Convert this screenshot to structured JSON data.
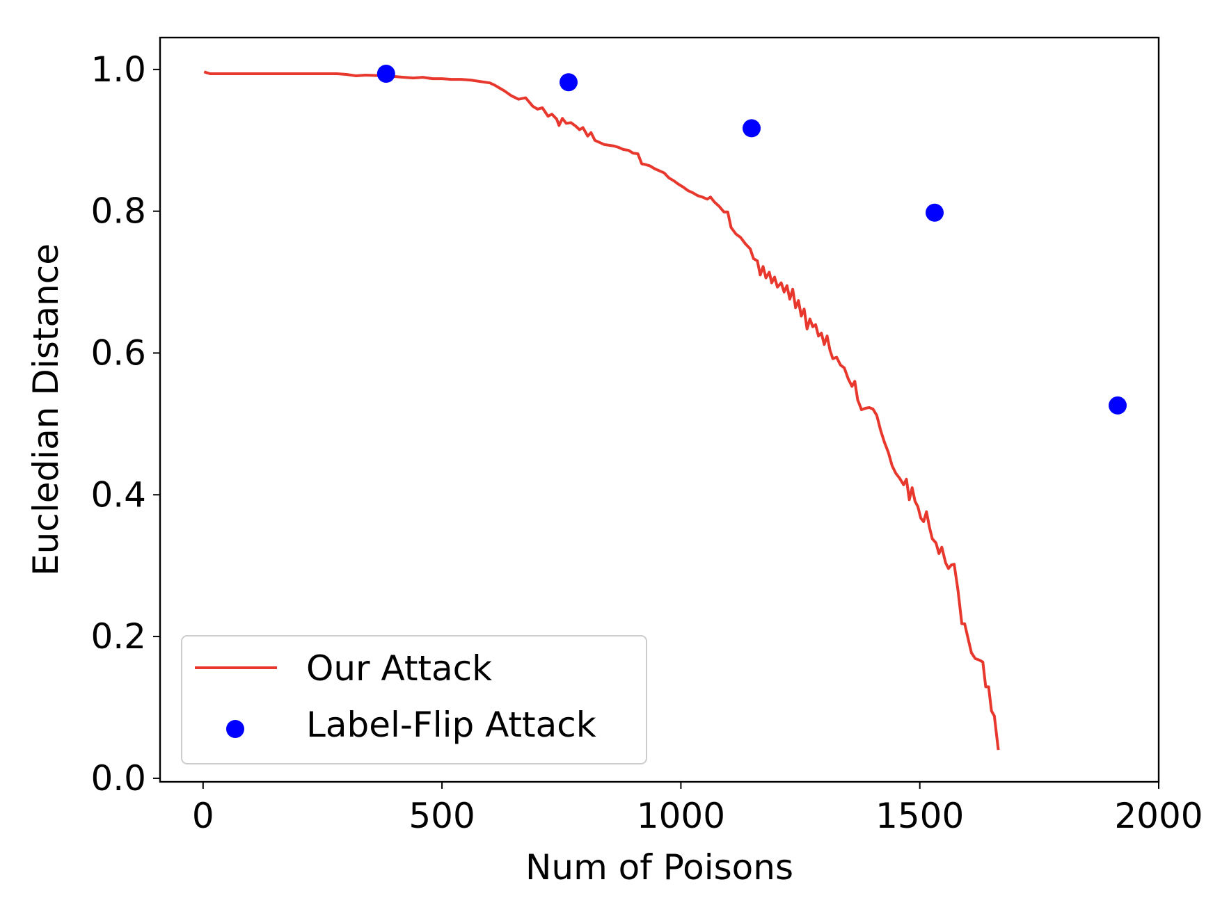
{
  "chart_data": {
    "type": "line",
    "title": "",
    "xlabel": "Num of Poisons",
    "ylabel": "Eucledian Distance",
    "xlim": [
      -90,
      2000
    ],
    "ylim": [
      -0.005,
      1.045
    ],
    "xticks": [
      0,
      500,
      1000,
      1500,
      2000
    ],
    "xtick_labels": [
      "0",
      "500",
      "1000",
      "1500",
      "2000"
    ],
    "yticks": [
      0.0,
      0.2,
      0.4,
      0.6,
      0.8,
      1.0
    ],
    "ytick_labels": [
      "0.0",
      "0.2",
      "0.4",
      "0.6",
      "0.8",
      "1.0"
    ],
    "grid": false,
    "legend_position": "lower-left",
    "series": [
      {
        "name": "Our Attack",
        "kind": "line",
        "color": "#e8372c",
        "points": [
          [
            5,
            0.996
          ],
          [
            15,
            0.994
          ],
          [
            50,
            0.994
          ],
          [
            100,
            0.994
          ],
          [
            200,
            0.994
          ],
          [
            280,
            0.994
          ],
          [
            300,
            0.993
          ],
          [
            320,
            0.991
          ],
          [
            340,
            0.992
          ],
          [
            380,
            0.991
          ],
          [
            400,
            0.99
          ],
          [
            420,
            0.989
          ],
          [
            440,
            0.988
          ],
          [
            460,
            0.989
          ],
          [
            480,
            0.987
          ],
          [
            500,
            0.987
          ],
          [
            520,
            0.986
          ],
          [
            540,
            0.986
          ],
          [
            560,
            0.985
          ],
          [
            580,
            0.983
          ],
          [
            600,
            0.981
          ],
          [
            610,
            0.978
          ],
          [
            620,
            0.974
          ],
          [
            630,
            0.97
          ],
          [
            645,
            0.963
          ],
          [
            660,
            0.958
          ],
          [
            675,
            0.96
          ],
          [
            690,
            0.948
          ],
          [
            700,
            0.944
          ],
          [
            710,
            0.946
          ],
          [
            722,
            0.934
          ],
          [
            730,
            0.937
          ],
          [
            740,
            0.93
          ],
          [
            745,
            0.921
          ],
          [
            752,
            0.931
          ],
          [
            760,
            0.924
          ],
          [
            770,
            0.925
          ],
          [
            780,
            0.92
          ],
          [
            788,
            0.915
          ],
          [
            795,
            0.918
          ],
          [
            805,
            0.906
          ],
          [
            812,
            0.911
          ],
          [
            820,
            0.9
          ],
          [
            830,
            0.897
          ],
          [
            840,
            0.894
          ],
          [
            850,
            0.893
          ],
          [
            860,
            0.892
          ],
          [
            870,
            0.89
          ],
          [
            880,
            0.887
          ],
          [
            890,
            0.886
          ],
          [
            900,
            0.882
          ],
          [
            910,
            0.881
          ],
          [
            918,
            0.867
          ],
          [
            925,
            0.866
          ],
          [
            935,
            0.864
          ],
          [
            945,
            0.86
          ],
          [
            955,
            0.857
          ],
          [
            965,
            0.854
          ],
          [
            975,
            0.847
          ],
          [
            985,
            0.843
          ],
          [
            995,
            0.838
          ],
          [
            1005,
            0.834
          ],
          [
            1015,
            0.829
          ],
          [
            1025,
            0.826
          ],
          [
            1035,
            0.822
          ],
          [
            1045,
            0.82
          ],
          [
            1055,
            0.817
          ],
          [
            1062,
            0.82
          ],
          [
            1070,
            0.813
          ],
          [
            1080,
            0.807
          ],
          [
            1090,
            0.799
          ],
          [
            1098,
            0.799
          ],
          [
            1105,
            0.777
          ],
          [
            1115,
            0.768
          ],
          [
            1125,
            0.763
          ],
          [
            1135,
            0.754
          ],
          [
            1145,
            0.747
          ],
          [
            1152,
            0.733
          ],
          [
            1160,
            0.73
          ],
          [
            1166,
            0.71
          ],
          [
            1172,
            0.722
          ],
          [
            1178,
            0.706
          ],
          [
            1185,
            0.714
          ],
          [
            1190,
            0.699
          ],
          [
            1196,
            0.707
          ],
          [
            1202,
            0.693
          ],
          [
            1210,
            0.699
          ],
          [
            1216,
            0.686
          ],
          [
            1222,
            0.695
          ],
          [
            1228,
            0.676
          ],
          [
            1234,
            0.69
          ],
          [
            1240,
            0.664
          ],
          [
            1246,
            0.674
          ],
          [
            1252,
            0.652
          ],
          [
            1258,
            0.662
          ],
          [
            1264,
            0.634
          ],
          [
            1270,
            0.648
          ],
          [
            1276,
            0.637
          ],
          [
            1282,
            0.64
          ],
          [
            1288,
            0.624
          ],
          [
            1294,
            0.628
          ],
          [
            1300,
            0.612
          ],
          [
            1306,
            0.624
          ],
          [
            1312,
            0.604
          ],
          [
            1318,
            0.592
          ],
          [
            1326,
            0.594
          ],
          [
            1334,
            0.583
          ],
          [
            1342,
            0.579
          ],
          [
            1350,
            0.564
          ],
          [
            1358,
            0.553
          ],
          [
            1364,
            0.56
          ],
          [
            1370,
            0.534
          ],
          [
            1378,
            0.52
          ],
          [
            1386,
            0.522
          ],
          [
            1394,
            0.523
          ],
          [
            1402,
            0.521
          ],
          [
            1410,
            0.512
          ],
          [
            1418,
            0.491
          ],
          [
            1426,
            0.474
          ],
          [
            1434,
            0.46
          ],
          [
            1442,
            0.441
          ],
          [
            1450,
            0.43
          ],
          [
            1458,
            0.423
          ],
          [
            1466,
            0.414
          ],
          [
            1472,
            0.422
          ],
          [
            1478,
            0.393
          ],
          [
            1484,
            0.41
          ],
          [
            1490,
            0.391
          ],
          [
            1496,
            0.383
          ],
          [
            1502,
            0.367
          ],
          [
            1508,
            0.362
          ],
          [
            1514,
            0.376
          ],
          [
            1520,
            0.355
          ],
          [
            1526,
            0.338
          ],
          [
            1534,
            0.332
          ],
          [
            1540,
            0.317
          ],
          [
            1546,
            0.326
          ],
          [
            1554,
            0.304
          ],
          [
            1560,
            0.296
          ],
          [
            1566,
            0.301
          ],
          [
            1572,
            0.302
          ],
          [
            1580,
            0.265
          ],
          [
            1588,
            0.218
          ],
          [
            1594,
            0.218
          ],
          [
            1600,
            0.2
          ],
          [
            1608,
            0.177
          ],
          [
            1616,
            0.169
          ],
          [
            1624,
            0.167
          ],
          [
            1632,
            0.164
          ],
          [
            1638,
            0.129
          ],
          [
            1644,
            0.129
          ],
          [
            1650,
            0.095
          ],
          [
            1656,
            0.088
          ],
          [
            1664,
            0.042
          ]
        ]
      },
      {
        "name": "Label-Flip Attack",
        "kind": "scatter",
        "color": "#0000ff",
        "points": [
          [
            383,
            0.994
          ],
          [
            765,
            0.982
          ],
          [
            1148,
            0.917
          ],
          [
            1531,
            0.798
          ],
          [
            1914,
            0.526
          ]
        ]
      }
    ]
  }
}
